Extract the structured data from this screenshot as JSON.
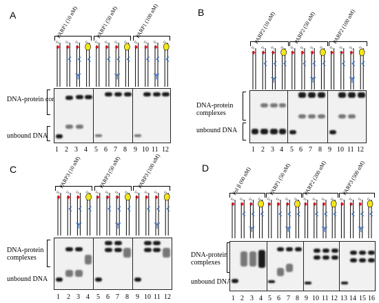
{
  "panels": [
    {
      "letter": "A",
      "ylabels": {
        "complexes": "DNA-protein complexes",
        "unbound": "unbound DNA"
      },
      "groups": [
        "PARP1 (10 nM)",
        "PARP1 (50 nM)",
        "PARP1 (100 nM)"
      ],
      "lanes": [
        "1",
        "2",
        "3",
        "4",
        "5",
        "6",
        "7",
        "8",
        "9",
        "10",
        "11",
        "12"
      ]
    },
    {
      "letter": "B",
      "ylabels": {
        "complexes": "DNA-protein complexes",
        "unbound": "unbound DNA"
      },
      "groups": [
        "PARP2 (10 nM)",
        "PARP2 (50 nM)",
        "PARP2 (100 nM)"
      ],
      "lanes": [
        "1",
        "2",
        "3",
        "4",
        "5",
        "6",
        "7",
        "8",
        "9",
        "10",
        "11",
        "12"
      ]
    },
    {
      "letter": "C",
      "ylabels": {
        "complexes": "DNA-protein complexes",
        "unbound": "unbound DNA"
      },
      "groups": [
        "PARP3 (10 nM)",
        "PARP3 (50 nM)",
        "PARP3 (100 nM)"
      ],
      "lanes": [
        "1",
        "2",
        "3",
        "4",
        "5",
        "6",
        "7",
        "8",
        "9",
        "10",
        "11",
        "12"
      ]
    },
    {
      "letter": "D",
      "ylabels": {
        "complexes": "DNA-protein complexes",
        "unbound": "unbound DNA"
      },
      "groups": [
        "Pol β (60 nM)",
        "PARP1 (50 nM)",
        "PARP2 (200 nM)",
        "PARP3 (500 nM)"
      ],
      "lanes": [
        "1",
        "2",
        "3",
        "4",
        "5",
        "6",
        "7",
        "8",
        "9",
        "10",
        "11",
        "12",
        "13",
        "14",
        "15",
        "16"
      ]
    }
  ],
  "strand_label": "5'"
}
